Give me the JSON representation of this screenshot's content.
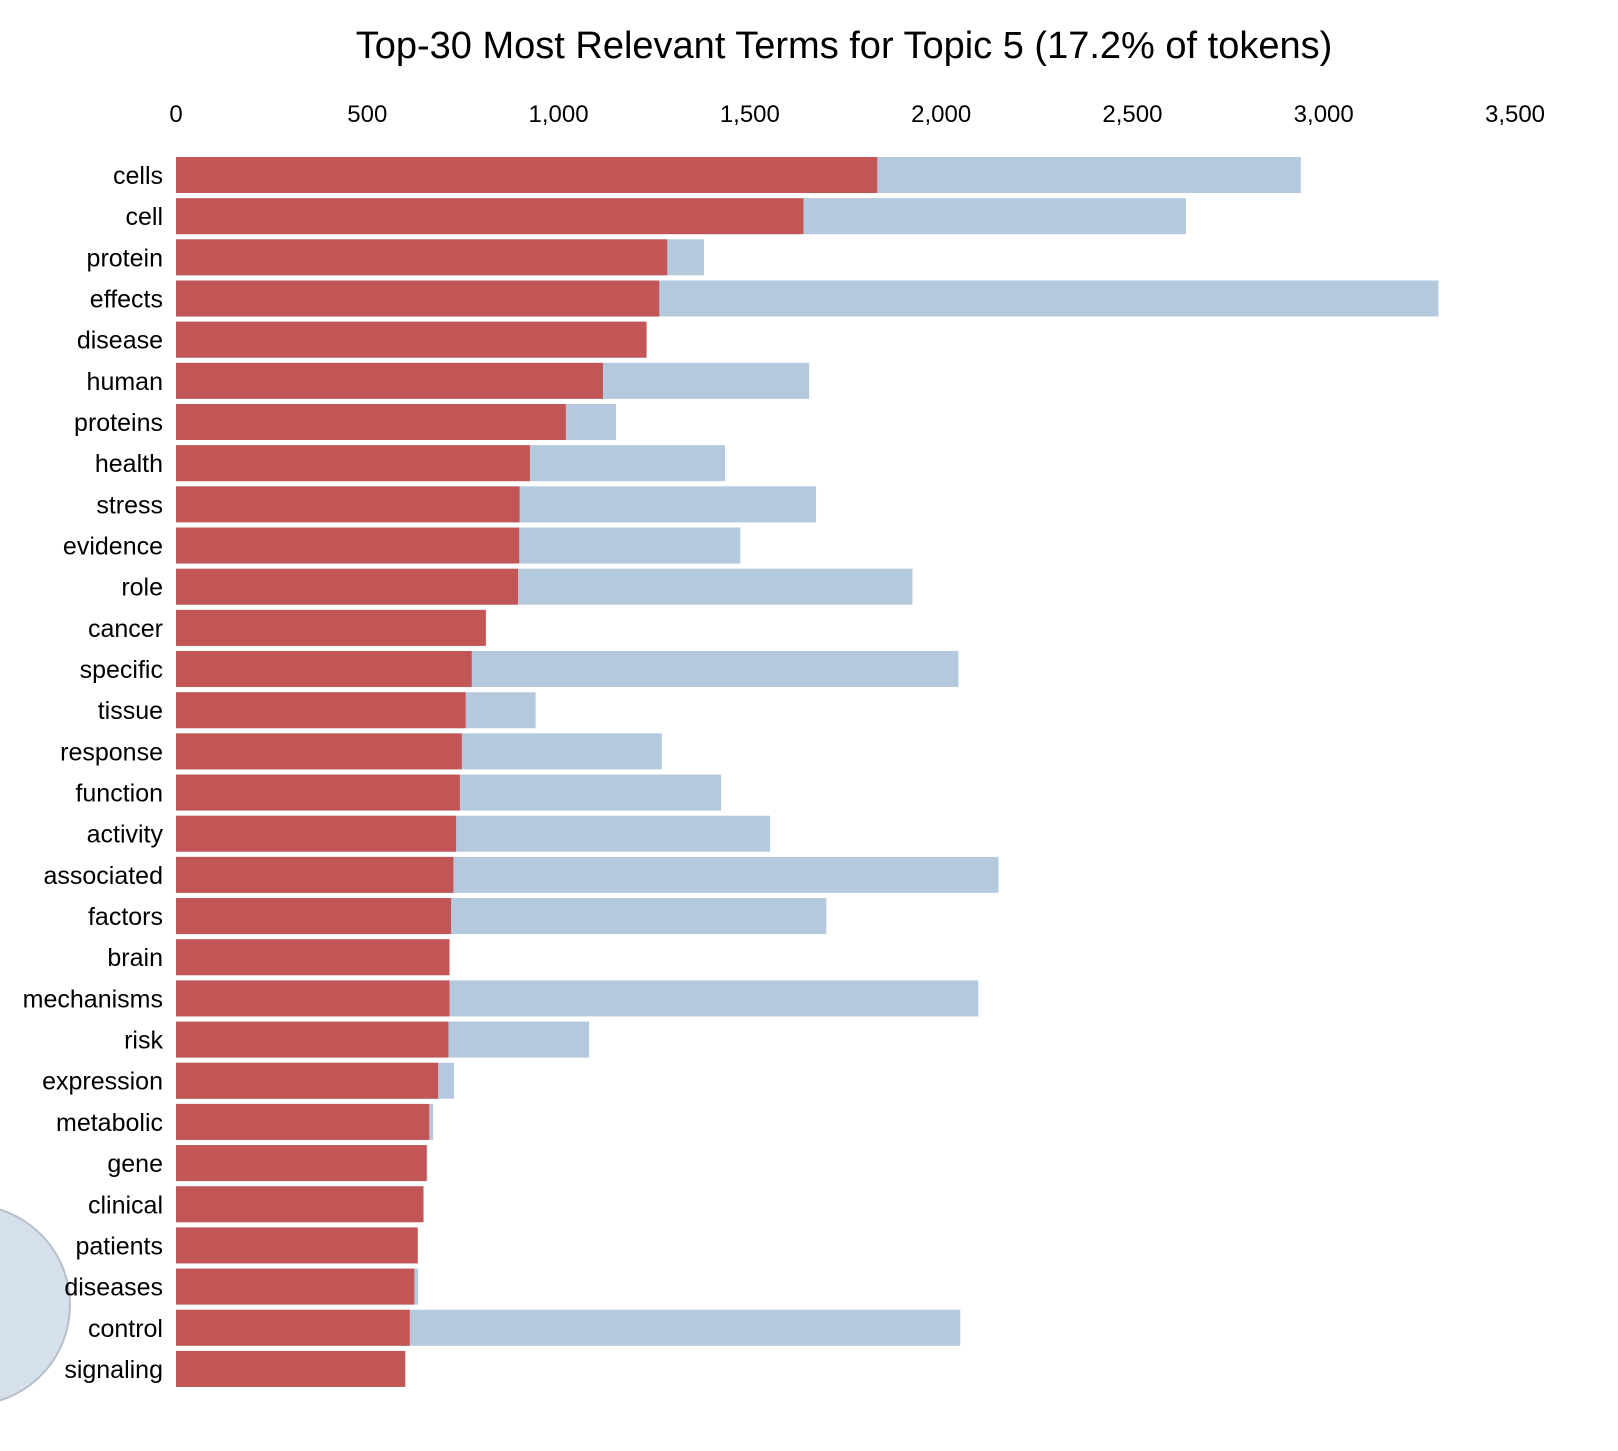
{
  "chart_data": {
    "type": "bar",
    "orientation": "horizontal",
    "stacking": "overlay",
    "title": "Top-30 Most Relevant Terms for Topic 5 (17.2% of tokens)",
    "xlabel": "",
    "ylabel": "",
    "xlim": [
      0,
      3500
    ],
    "x_ticks": [
      0,
      500,
      1000,
      1500,
      2000,
      2500,
      3000,
      3500
    ],
    "x_tick_labels": [
      "0",
      "500",
      "1,000",
      "1,500",
      "2,000",
      "2,500",
      "3,000",
      "3,500"
    ],
    "x_axis_position": "top",
    "grid": false,
    "categories": [
      "cells",
      "cell",
      "protein",
      "effects",
      "disease",
      "human",
      "proteins",
      "health",
      "stress",
      "evidence",
      "role",
      "cancer",
      "specific",
      "tissue",
      "response",
      "function",
      "activity",
      "associated",
      "factors",
      "brain",
      "mechanisms",
      "risk",
      "expression",
      "metabolic",
      "gene",
      "clinical",
      "patients",
      "diseases",
      "control",
      "signaling"
    ],
    "series": [
      {
        "role": "overall-term-frequency",
        "color": "#b4c8de",
        "values": [
          2940,
          2640,
          1380,
          3300,
          1230,
          1655,
          1150,
          1435,
          1673,
          1475,
          1925,
          805,
          2045,
          940,
          1270,
          1425,
          1553,
          2150,
          1700,
          710,
          2097,
          1080,
          727,
          672,
          657,
          645,
          630,
          633,
          2050,
          600
        ]
      },
      {
        "role": "estimated-term-frequency-within-topic",
        "color": "#c25656",
        "values": [
          1833,
          1640,
          1284,
          1263,
          1230,
          1116,
          1019,
          925,
          898,
          897,
          894,
          810,
          773,
          757,
          747,
          742,
          732,
          725,
          719,
          715,
          715,
          712,
          685,
          662,
          655,
          647,
          632,
          623,
          611,
          599
        ]
      }
    ]
  }
}
